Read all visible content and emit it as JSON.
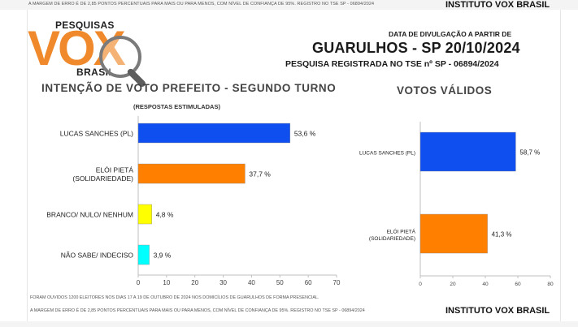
{
  "top_note": "A MARGEM DE ERRO É DE 2,85 PONTOS PERCENTUAIS PARA MAIS OU PARA MENOS, COM NÍVEL DE CONFIANÇA DE 95%. REGISTRO NO TSE SP - 06894/2024",
  "brand": "INSTITUTO VOX BRASIL",
  "logo": {
    "top": "PESQUISAS",
    "main": "VOX",
    "bottom": "BRASIL"
  },
  "header": {
    "date_label": "DATA DE DIVULGAÇÃO A PARTIR DE",
    "city_date": "GUARULHOS - SP 20/10/2024",
    "registration": "PESQUISA REGISTRADA NO TSE nº SP - 06894/2024"
  },
  "footer": {
    "fieldwork": "FORAM OUVIDOS 1200 ELEITORES NOS DIAS 17 A 19 DE OUTUBRO DE 2024 NOS DOMICÍLIOS DE GUARULHOS DE FORMA PRESENCIAL.",
    "margin": "A MARGEM DE ERRO É DE 2,85 PONTOS PERCENTUAIS PARA MAIS OU PARA MENOS, COM NÍVEL DE CONFIANÇA DE 95%. REGISTRO NO TSE SP - 06894/2024",
    "brand": "INSTITUTO VOX BRASIL"
  },
  "chart_data": [
    {
      "type": "bar",
      "orientation": "horizontal",
      "title": "INTENÇÃO DE VOTO PREFEITO - SEGUNDO TURNO",
      "subtitle": "(RESPOSTAS ESTIMULADAS)",
      "categories": [
        [
          "LUCAS SANCHES (PL)"
        ],
        [
          "ELÓI PIETÁ",
          "(SOLIDARIEDADE)"
        ],
        [
          "BRANCO/ NULO/ NENHUM"
        ],
        [
          "NÃO SABE/ INDECISO"
        ]
      ],
      "values": [
        53.6,
        37.7,
        4.8,
        3.9
      ],
      "value_labels": [
        "53,6 %",
        "37,7 %",
        "4,8 %",
        "3,9 %"
      ],
      "colors": [
        "#0f4ff0",
        "#ff8000",
        "#ffff00",
        "#00ffff"
      ],
      "xlim": [
        0,
        70
      ],
      "xticks": [
        0,
        10,
        20,
        30,
        40,
        50,
        60,
        70
      ],
      "grid": false
    },
    {
      "type": "bar",
      "orientation": "horizontal",
      "title": "VOTOS VÁLIDOS",
      "categories": [
        [
          "LUCAS SANCHES (PL)"
        ],
        [
          "ELÓI PIETÁ",
          "(SOLIDARIEDADE)"
        ]
      ],
      "values": [
        58.7,
        41.3
      ],
      "value_labels": [
        "58,7 %",
        "41,3 %"
      ],
      "colors": [
        "#0f4ff0",
        "#ff8000"
      ],
      "xlim": [
        0,
        80
      ],
      "xticks": [
        0,
        20,
        40,
        60,
        80
      ],
      "grid": false
    }
  ]
}
